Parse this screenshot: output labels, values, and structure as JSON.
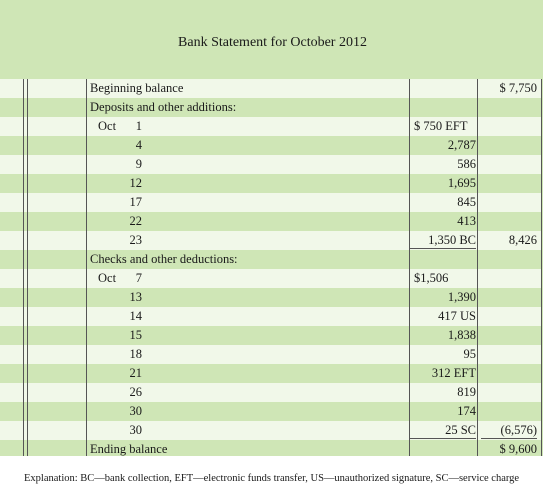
{
  "title": "Bank Statement for October 2012",
  "rows": [
    {
      "type": "header",
      "label": "Beginning balance",
      "amount": "",
      "total": "$ 7,750"
    },
    {
      "type": "header",
      "label": "Deposits and other additions:",
      "amount": "",
      "total": ""
    },
    {
      "type": "item",
      "month": "Oct",
      "day": "1",
      "amount": "$   750 EFT",
      "total": ""
    },
    {
      "type": "item",
      "month": "",
      "day": "4",
      "amount": "2,787",
      "total": ""
    },
    {
      "type": "item",
      "month": "",
      "day": "9",
      "amount": "586",
      "total": ""
    },
    {
      "type": "item",
      "month": "",
      "day": "12",
      "amount": "1,695",
      "total": ""
    },
    {
      "type": "item",
      "month": "",
      "day": "17",
      "amount": "845",
      "total": ""
    },
    {
      "type": "item",
      "month": "",
      "day": "22",
      "amount": "413",
      "total": ""
    },
    {
      "type": "item",
      "month": "",
      "day": "23",
      "amount": "1,350 BC",
      "total": "8,426"
    },
    {
      "type": "header",
      "label": "Checks and other deductions:",
      "amount": "",
      "total": ""
    },
    {
      "type": "item",
      "month": "Oct",
      "day": "7",
      "amount": "$1,506",
      "total": ""
    },
    {
      "type": "item",
      "month": "",
      "day": "13",
      "amount": "1,390",
      "total": ""
    },
    {
      "type": "item",
      "month": "",
      "day": "14",
      "amount": "417 US",
      "total": ""
    },
    {
      "type": "item",
      "month": "",
      "day": "15",
      "amount": "1,838",
      "total": ""
    },
    {
      "type": "item",
      "month": "",
      "day": "18",
      "amount": "95",
      "total": ""
    },
    {
      "type": "item",
      "month": "",
      "day": "21",
      "amount": "312 EFT",
      "total": ""
    },
    {
      "type": "item",
      "month": "",
      "day": "26",
      "amount": "819",
      "total": ""
    },
    {
      "type": "item",
      "month": "",
      "day": "30",
      "amount": "174",
      "total": ""
    },
    {
      "type": "item",
      "month": "",
      "day": "30",
      "amount": "25 SC",
      "total": "(6,576)"
    },
    {
      "type": "header",
      "label": "Ending balance",
      "amount": "",
      "total": "$ 9,600"
    }
  ],
  "explanation": "Explanation: BC—bank collection, EFT—electronic funds transfer, US—unauthorized signature, SC—service charge"
}
